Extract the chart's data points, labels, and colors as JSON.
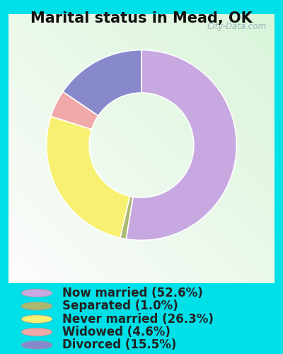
{
  "title": "Marital status in Mead, OK",
  "slices": [
    52.6,
    1.0,
    26.3,
    4.6,
    15.5
  ],
  "labels": [
    "Now married (52.6%)",
    "Separated (1.0%)",
    "Never married (26.3%)",
    "Widowed (4.6%)",
    "Divorced (15.5%)"
  ],
  "colors": [
    "#c8a8e0",
    "#aab870",
    "#f8f070",
    "#f0a8a8",
    "#8888cc"
  ],
  "outer_bg": "#00e0e8",
  "donut_width": 0.45,
  "title_fontsize": 15,
  "legend_fontsize": 12,
  "watermark": "City-Data.com"
}
